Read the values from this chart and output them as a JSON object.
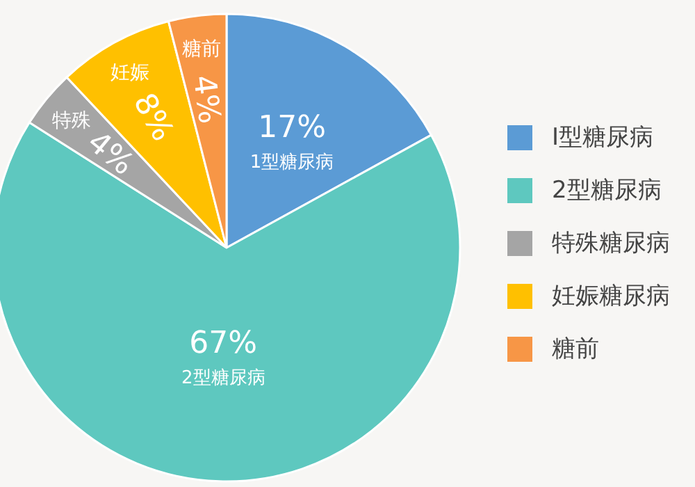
{
  "chart_data": {
    "type": "pie",
    "categories": [
      "I型糖尿病",
      "2型糖尿病",
      "特殊糖尿病",
      "妊娠糖尿病",
      "糖前"
    ],
    "values": [
      17,
      67,
      4,
      8,
      4
    ],
    "colors": [
      "#5b9bd5",
      "#5ec8bf",
      "#a5a5a5",
      "#ffc000",
      "#f79646"
    ],
    "value_labels": [
      "17%",
      "67%",
      "4%",
      "8%",
      "4%"
    ],
    "annotations": [
      "1型糖尿病",
      "2型糖尿病",
      "特殊",
      "妊娠",
      "糖前"
    ],
    "legend": "right"
  }
}
